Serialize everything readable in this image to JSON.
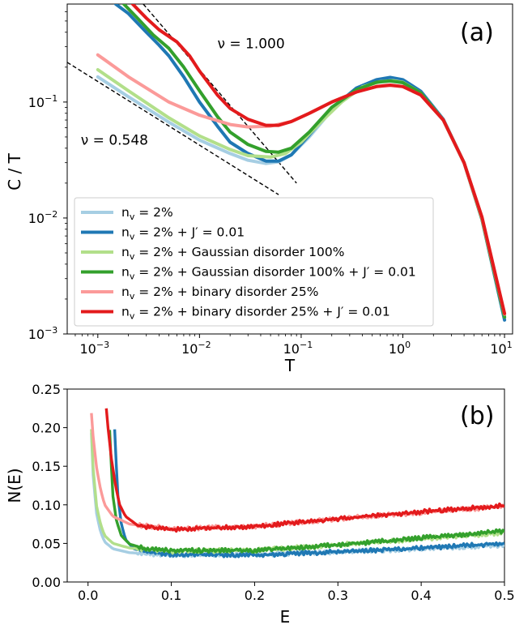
{
  "chart_data": [
    {
      "panel": "(a)",
      "type": "line",
      "xlabel": "T",
      "ylabel": "C / T",
      "xscale": "log",
      "yscale": "log",
      "xlim": [
        0.0005,
        12
      ],
      "ylim": [
        0.001,
        0.7
      ],
      "xticks": [
        {
          "v": 0.001,
          "b": "10",
          "e": "−3"
        },
        {
          "v": 0.01,
          "b": "10",
          "e": "−2"
        },
        {
          "v": 0.1,
          "b": "10",
          "e": "−1"
        },
        {
          "v": 1,
          "b": "10",
          "e": "0"
        },
        {
          "v": 10,
          "b": "10",
          "e": "1"
        }
      ],
      "yticks": [
        {
          "v": 0.001,
          "b": "10",
          "e": "−3"
        },
        {
          "v": 0.01,
          "b": "10",
          "e": "−2"
        },
        {
          "v": 0.1,
          "b": "10",
          "e": "−1"
        }
      ],
      "legend_position": "lower-left",
      "annotations": [
        {
          "text": "ν = 1.000",
          "at": [
            0.015,
            0.29
          ]
        },
        {
          "text": "ν = 0.548",
          "at": [
            0.00068,
            0.043
          ]
        }
      ],
      "guide_lines": [
        {
          "label": "ν = 1.000",
          "points": [
            [
              0.0028,
              0.7
            ],
            [
              0.09,
              0.02
            ]
          ],
          "style": "dashed"
        },
        {
          "label": "ν = 0.548",
          "points": [
            [
              0.0005,
              0.22
            ],
            [
              0.06,
              0.0159
            ]
          ],
          "style": "dashed"
        }
      ],
      "series": [
        {
          "name": "nᵥ = 2%",
          "legend": [
            "n",
            "v",
            " = 2%"
          ],
          "color": "#a6cee3",
          "points": [
            [
              0.001,
              0.165
            ],
            [
              0.002,
              0.111
            ],
            [
              0.005,
              0.067
            ],
            [
              0.01,
              0.047
            ],
            [
              0.02,
              0.036
            ],
            [
              0.03,
              0.0315
            ],
            [
              0.045,
              0.0295
            ],
            [
              0.06,
              0.0305
            ],
            [
              0.08,
              0.035
            ],
            [
              0.12,
              0.05
            ],
            [
              0.2,
              0.085
            ],
            [
              0.35,
              0.128
            ],
            [
              0.55,
              0.152
            ],
            [
              0.75,
              0.16
            ],
            [
              1.0,
              0.153
            ],
            [
              1.5,
              0.122
            ],
            [
              2.5,
              0.07
            ],
            [
              4,
              0.03
            ],
            [
              6,
              0.0098
            ],
            [
              10,
              0.00135
            ]
          ]
        },
        {
          "name": "nᵥ = 2% + J′ = 0.01",
          "legend": [
            "n",
            "v",
            " = 2% + J′ = 0.01"
          ],
          "color": "#1f78b4",
          "points": [
            [
              0.0015,
              0.7
            ],
            [
              0.002,
              0.58
            ],
            [
              0.003,
              0.4
            ],
            [
              0.004,
              0.31
            ],
            [
              0.005,
              0.25
            ],
            [
              0.007,
              0.165
            ],
            [
              0.01,
              0.1
            ],
            [
              0.015,
              0.062
            ],
            [
              0.02,
              0.045
            ],
            [
              0.03,
              0.036
            ],
            [
              0.045,
              0.031
            ],
            [
              0.06,
              0.031
            ],
            [
              0.08,
              0.035
            ],
            [
              0.12,
              0.052
            ],
            [
              0.2,
              0.088
            ],
            [
              0.35,
              0.132
            ],
            [
              0.55,
              0.156
            ],
            [
              0.75,
              0.163
            ],
            [
              1.0,
              0.156
            ],
            [
              1.5,
              0.124
            ],
            [
              2.5,
              0.071
            ],
            [
              4,
              0.03
            ],
            [
              6,
              0.0097
            ],
            [
              10,
              0.00132
            ]
          ]
        },
        {
          "name": "nᵥ = 2% + Gaussian disorder 100%",
          "legend": [
            "n",
            "v",
            " = 2% + Gaussian disorder 100%"
          ],
          "color": "#b2df8a",
          "points": [
            [
              0.001,
              0.19
            ],
            [
              0.002,
              0.125
            ],
            [
              0.005,
              0.073
            ],
            [
              0.01,
              0.051
            ],
            [
              0.02,
              0.039
            ],
            [
              0.03,
              0.0345
            ],
            [
              0.05,
              0.0335
            ],
            [
              0.07,
              0.036
            ],
            [
              0.1,
              0.045
            ],
            [
              0.15,
              0.065
            ],
            [
              0.25,
              0.1
            ],
            [
              0.4,
              0.135
            ],
            [
              0.6,
              0.15
            ],
            [
              0.8,
              0.153
            ],
            [
              1.0,
              0.148
            ],
            [
              1.5,
              0.12
            ],
            [
              2.5,
              0.07
            ],
            [
              4,
              0.03
            ],
            [
              6,
              0.0098
            ],
            [
              10,
              0.0014
            ]
          ]
        },
        {
          "name": "nᵥ = 2% + Gaussian disorder 100% + J′ = 0.01",
          "legend": [
            "n",
            "v",
            " = 2% + Gaussian disorder 100% + J′ = 0.01"
          ],
          "color": "#33a02c",
          "points": [
            [
              0.0018,
              0.7
            ],
            [
              0.0025,
              0.52
            ],
            [
              0.0035,
              0.38
            ],
            [
              0.005,
              0.29
            ],
            [
              0.007,
              0.2
            ],
            [
              0.01,
              0.125
            ],
            [
              0.015,
              0.075
            ],
            [
              0.02,
              0.055
            ],
            [
              0.03,
              0.043
            ],
            [
              0.045,
              0.0375
            ],
            [
              0.06,
              0.037
            ],
            [
              0.08,
              0.04
            ],
            [
              0.12,
              0.055
            ],
            [
              0.2,
              0.09
            ],
            [
              0.35,
              0.128
            ],
            [
              0.55,
              0.148
            ],
            [
              0.75,
              0.152
            ],
            [
              1.0,
              0.147
            ],
            [
              1.5,
              0.12
            ],
            [
              2.5,
              0.07
            ],
            [
              4,
              0.03
            ],
            [
              6,
              0.0098
            ],
            [
              10,
              0.0014
            ]
          ]
        },
        {
          "name": "nᵥ = 2% + binary disorder 25%",
          "legend": [
            "n",
            "v",
            " = 2% + binary disorder 25%"
          ],
          "color": "#fb9a99",
          "points": [
            [
              0.001,
              0.255
            ],
            [
              0.002,
              0.165
            ],
            [
              0.005,
              0.1
            ],
            [
              0.01,
              0.077
            ],
            [
              0.02,
              0.064
            ],
            [
              0.03,
              0.061
            ],
            [
              0.05,
              0.062
            ],
            [
              0.08,
              0.068
            ],
            [
              0.12,
              0.08
            ],
            [
              0.2,
              0.1
            ],
            [
              0.35,
              0.122
            ],
            [
              0.55,
              0.136
            ],
            [
              0.75,
              0.139
            ],
            [
              1.0,
              0.136
            ],
            [
              1.5,
              0.115
            ],
            [
              2.5,
              0.07
            ],
            [
              4,
              0.03
            ],
            [
              6,
              0.01
            ],
            [
              10,
              0.00148
            ]
          ]
        },
        {
          "name": "nᵥ = 2% + binary disorder 25% + J′ = 0.01",
          "legend": [
            "n",
            "v",
            " = 2% + binary disorder 25% + J′ = 0.01"
          ],
          "color": "#e31a1c",
          "points": [
            [
              0.0022,
              0.7
            ],
            [
              0.003,
              0.53
            ],
            [
              0.004,
              0.42
            ],
            [
              0.006,
              0.33
            ],
            [
              0.008,
              0.25
            ],
            [
              0.01,
              0.185
            ],
            [
              0.015,
              0.115
            ],
            [
              0.02,
              0.088
            ],
            [
              0.03,
              0.071
            ],
            [
              0.045,
              0.063
            ],
            [
              0.06,
              0.063
            ],
            [
              0.08,
              0.068
            ],
            [
              0.12,
              0.08
            ],
            [
              0.2,
              0.1
            ],
            [
              0.35,
              0.122
            ],
            [
              0.55,
              0.136
            ],
            [
              0.75,
              0.14
            ],
            [
              1.0,
              0.136
            ],
            [
              1.5,
              0.115
            ],
            [
              2.5,
              0.07
            ],
            [
              4,
              0.03
            ],
            [
              6,
              0.0102
            ],
            [
              10,
              0.0015
            ]
          ]
        }
      ]
    },
    {
      "panel": "(b)",
      "type": "line",
      "xlabel": "E",
      "ylabel": "N(E)",
      "xlim": [
        -0.025,
        0.5
      ],
      "ylim": [
        0,
        0.25
      ],
      "xticks": [
        "0.0",
        "0.1",
        "0.2",
        "0.3",
        "0.4",
        "0.5"
      ],
      "yticks": [
        "0.00",
        "0.05",
        "0.10",
        "0.15",
        "0.20",
        "0.25"
      ],
      "series": [
        {
          "name": "nᵥ = 2%",
          "color": "#a6cee3",
          "points": [
            [
              0.002,
              0.25
            ],
            [
              0.006,
              0.14
            ],
            [
              0.01,
              0.09
            ],
            [
              0.015,
              0.065
            ],
            [
              0.02,
              0.052
            ],
            [
              0.03,
              0.043
            ],
            [
              0.05,
              0.038
            ],
            [
              0.1,
              0.035
            ],
            [
              0.2,
              0.036
            ],
            [
              0.3,
              0.039
            ],
            [
              0.4,
              0.043
            ],
            [
              0.5,
              0.048
            ]
          ]
        },
        {
          "name": "nᵥ = 2% + J′ = 0.01",
          "color": "#1f78b4",
          "points": [
            [
              0.03,
              0.25
            ],
            [
              0.033,
              0.17
            ],
            [
              0.036,
              0.11
            ],
            [
              0.04,
              0.075
            ],
            [
              0.045,
              0.055
            ],
            [
              0.055,
              0.043
            ],
            [
              0.07,
              0.039
            ],
            [
              0.1,
              0.036
            ],
            [
              0.2,
              0.035
            ],
            [
              0.3,
              0.039
            ],
            [
              0.4,
              0.044
            ],
            [
              0.5,
              0.05
            ]
          ]
        },
        {
          "name": "nᵥ = 2% + Gaussian disorder 100%",
          "color": "#b2df8a",
          "points": [
            [
              0.002,
              0.25
            ],
            [
              0.006,
              0.15
            ],
            [
              0.01,
              0.1
            ],
            [
              0.015,
              0.075
            ],
            [
              0.02,
              0.06
            ],
            [
              0.03,
              0.05
            ],
            [
              0.05,
              0.044
            ],
            [
              0.1,
              0.04
            ],
            [
              0.2,
              0.041
            ],
            [
              0.3,
              0.048
            ],
            [
              0.4,
              0.056
            ],
            [
              0.5,
              0.064
            ]
          ]
        },
        {
          "name": "nᵥ = 2% + Gaussian disorder 100% + J′ = 0.01",
          "color": "#33a02c",
          "points": [
            [
              0.024,
              0.25
            ],
            [
              0.027,
              0.17
            ],
            [
              0.03,
              0.11
            ],
            [
              0.034,
              0.08
            ],
            [
              0.04,
              0.06
            ],
            [
              0.05,
              0.049
            ],
            [
              0.07,
              0.043
            ],
            [
              0.1,
              0.041
            ],
            [
              0.2,
              0.041
            ],
            [
              0.3,
              0.048
            ],
            [
              0.4,
              0.057
            ],
            [
              0.5,
              0.066
            ]
          ]
        },
        {
          "name": "nᵥ = 2% + binary disorder 25%",
          "color": "#fb9a99",
          "points": [
            [
              0.002,
              0.25
            ],
            [
              0.006,
              0.19
            ],
            [
              0.01,
              0.15
            ],
            [
              0.015,
              0.12
            ],
            [
              0.02,
              0.1
            ],
            [
              0.03,
              0.085
            ],
            [
              0.05,
              0.075
            ],
            [
              0.1,
              0.069
            ],
            [
              0.2,
              0.072
            ],
            [
              0.3,
              0.082
            ],
            [
              0.4,
              0.09
            ],
            [
              0.5,
              0.098
            ]
          ]
        },
        {
          "name": "nᵥ = 2% + binary disorder 25% + J′ = 0.01",
          "color": "#e31a1c",
          "points": [
            [
              0.02,
              0.25
            ],
            [
              0.024,
              0.2
            ],
            [
              0.028,
              0.16
            ],
            [
              0.033,
              0.125
            ],
            [
              0.038,
              0.1
            ],
            [
              0.045,
              0.085
            ],
            [
              0.06,
              0.073
            ],
            [
              0.1,
              0.068
            ],
            [
              0.2,
              0.072
            ],
            [
              0.3,
              0.082
            ],
            [
              0.4,
              0.091
            ],
            [
              0.5,
              0.099
            ]
          ]
        }
      ]
    }
  ]
}
